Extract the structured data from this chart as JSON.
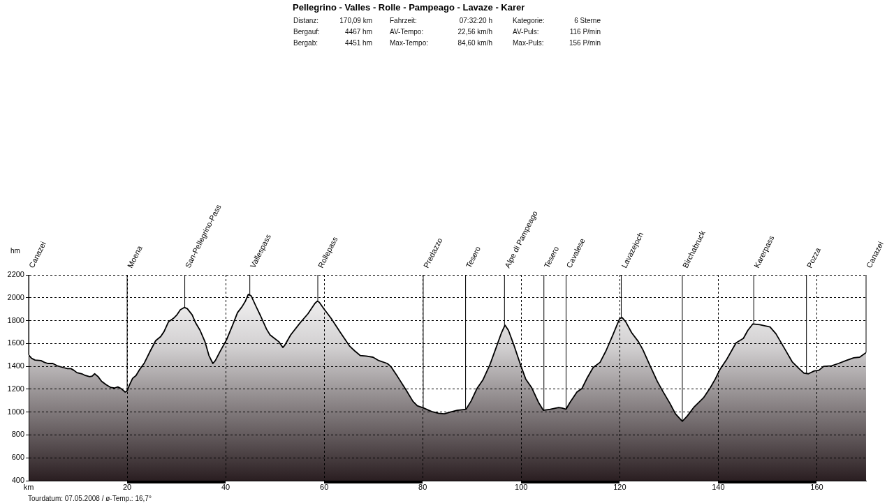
{
  "chart_data": {
    "type": "area",
    "title": "Pellegrino - Valles - Rolle - Pampeago - Lavaze - Karer",
    "ylabel": "hm",
    "annotations": [
      "Distanz:",
      "170,09 km",
      "Fahrzeit:",
      "07:32:20 h",
      "Kategorie:",
      "6 Sterne",
      "Bergauf:",
      "4467 hm",
      "AV-Tempo:",
      "22,56 km/h",
      "AV-Puls:",
      "116 P/min",
      "Bergab:",
      "4451 hm",
      "Max-Tempo:",
      "84,60 km/h",
      "Max-Puls:",
      "156 P/min",
      "Tourdatum: 07.05.2008 / ø-Temp.: 16,7°"
    ],
    "x": [
      0,
      0.6,
      1.3,
      2.5,
      3.2,
      3.9,
      4.9,
      5.8,
      7.0,
      7.9,
      8.6,
      9.2,
      9.8,
      10.8,
      11.5,
      12.4,
      12.9,
      13.4,
      14.1,
      14.8,
      15.7,
      16.7,
      17.4,
      18.1,
      18.8,
      19.6,
      20.0,
      20.4,
      21.1,
      21.8,
      22.5,
      23.5,
      24.7,
      25.8,
      26.8,
      27.5,
      28.4,
      29.4,
      30.1,
      30.8,
      31.6,
      32.2,
      33.2,
      33.9,
      34.8,
      35.8,
      36.6,
      37.4,
      37.9,
      38.8,
      40.2,
      41.4,
      42.4,
      43.3,
      44.0,
      44.6,
      45.2,
      46.1,
      47.1,
      48.3,
      49.0,
      49.9,
      50.8,
      51.6,
      52.0,
      53.2,
      55.1,
      56.7,
      58.1,
      58.6,
      59.0,
      60.0,
      61.4,
      63.3,
      65.2,
      66.2,
      67.3,
      68.5,
      69.9,
      71.1,
      72.8,
      73.5,
      74.9,
      76.6,
      78.0,
      78.9,
      80.2,
      81.8,
      83.2,
      84.4,
      85.6,
      87.0,
      88.8,
      89.8,
      91.0,
      92.2,
      93.6,
      95.0,
      96.0,
      96.7,
      97.4,
      98.6,
      99.8,
      100.9,
      102.1,
      103.5,
      104.5,
      105.9,
      107.6,
      108.3,
      109.1,
      109.9,
      111.3,
      112.3,
      113.4,
      114.6,
      116.0,
      117.2,
      118.6,
      120.0,
      120.5,
      121.2,
      122.4,
      123.8,
      124.7,
      126.1,
      127.6,
      128.7,
      130.2,
      131.3,
      132.7,
      133.7,
      135.1,
      137.0,
      138.4,
      139.4,
      140.3,
      141.7,
      143.6,
      145.1,
      146.0,
      147.0,
      148.4,
      150.5,
      151.7,
      153.6,
      155.0,
      156.4,
      157.4,
      158.3,
      159.5,
      160.4,
      161.4,
      163.0,
      164.4,
      165.9,
      167.5,
      168.7,
      170.0
    ],
    "series": [
      {
        "color": "#000000",
        "values": [
          1500,
          1470,
          1455,
          1450,
          1435,
          1425,
          1425,
          1405,
          1390,
          1380,
          1380,
          1365,
          1345,
          1335,
          1320,
          1310,
          1315,
          1335,
          1310,
          1270,
          1240,
          1215,
          1210,
          1220,
          1205,
          1175,
          1185,
          1230,
          1295,
          1320,
          1370,
          1430,
          1535,
          1625,
          1660,
          1705,
          1790,
          1820,
          1850,
          1895,
          1915,
          1905,
          1850,
          1780,
          1715,
          1615,
          1495,
          1425,
          1450,
          1525,
          1635,
          1760,
          1870,
          1920,
          1970,
          2030,
          2015,
          1930,
          1840,
          1725,
          1675,
          1645,
          1615,
          1565,
          1585,
          1675,
          1780,
          1860,
          1950,
          1970,
          1960,
          1900,
          1820,
          1695,
          1575,
          1535,
          1495,
          1490,
          1480,
          1450,
          1425,
          1400,
          1310,
          1195,
          1095,
          1055,
          1035,
          1005,
          990,
          985,
          1000,
          1015,
          1025,
          1095,
          1205,
          1280,
          1410,
          1575,
          1695,
          1760,
          1715,
          1575,
          1420,
          1290,
          1215,
          1085,
          1015,
          1025,
          1040,
          1035,
          1025,
          1085,
          1175,
          1205,
          1300,
          1390,
          1435,
          1535,
          1675,
          1820,
          1825,
          1790,
          1695,
          1615,
          1545,
          1410,
          1270,
          1185,
          1075,
          985,
          920,
          965,
          1045,
          1125,
          1215,
          1290,
          1370,
          1460,
          1605,
          1645,
          1715,
          1770,
          1765,
          1745,
          1685,
          1545,
          1440,
          1380,
          1340,
          1335,
          1360,
          1365,
          1400,
          1405,
          1425,
          1450,
          1475,
          1480,
          1520
        ]
      }
    ],
    "xlim": [
      0,
      170
    ],
    "ylim": [
      400,
      2200
    ],
    "xticks": [
      {
        "value": 0,
        "label": "km"
      },
      20,
      40,
      60,
      80,
      100,
      120,
      140,
      160
    ],
    "yticks": [
      400,
      600,
      800,
      1000,
      1200,
      1400,
      1600,
      1800,
      2000,
      2200
    ],
    "grid": true,
    "ref_lines": [
      {
        "axis": "x",
        "value": 0,
        "label": "Canazei"
      },
      {
        "axis": "x",
        "value": 20,
        "label": "Moena"
      },
      {
        "axis": "x",
        "value": 31.7,
        "label": "San-Pellegrino-Pass"
      },
      {
        "axis": "x",
        "value": 44.9,
        "label": "Vallespass"
      },
      {
        "axis": "x",
        "value": 58.7,
        "label": "Rollepass"
      },
      {
        "axis": "x",
        "value": 80.1,
        "label": "Predazzo"
      },
      {
        "axis": "x",
        "value": 88.7,
        "label": "Tesero"
      },
      {
        "axis": "x",
        "value": 96.6,
        "label": "Alpe di Pampeago"
      },
      {
        "axis": "x",
        "value": 104.6,
        "label": "Tesero"
      },
      {
        "axis": "x",
        "value": 109.1,
        "label": "Cavalese"
      },
      {
        "axis": "x",
        "value": 120.3,
        "label": "Lavazejoch"
      },
      {
        "axis": "x",
        "value": 132.7,
        "label": "Birchabruck"
      },
      {
        "axis": "x",
        "value": 147.2,
        "label": "Karerpass"
      },
      {
        "axis": "x",
        "value": 157.9,
        "label": "Pozza"
      },
      {
        "axis": "x",
        "value": 170,
        "label": "Canazei"
      }
    ]
  }
}
